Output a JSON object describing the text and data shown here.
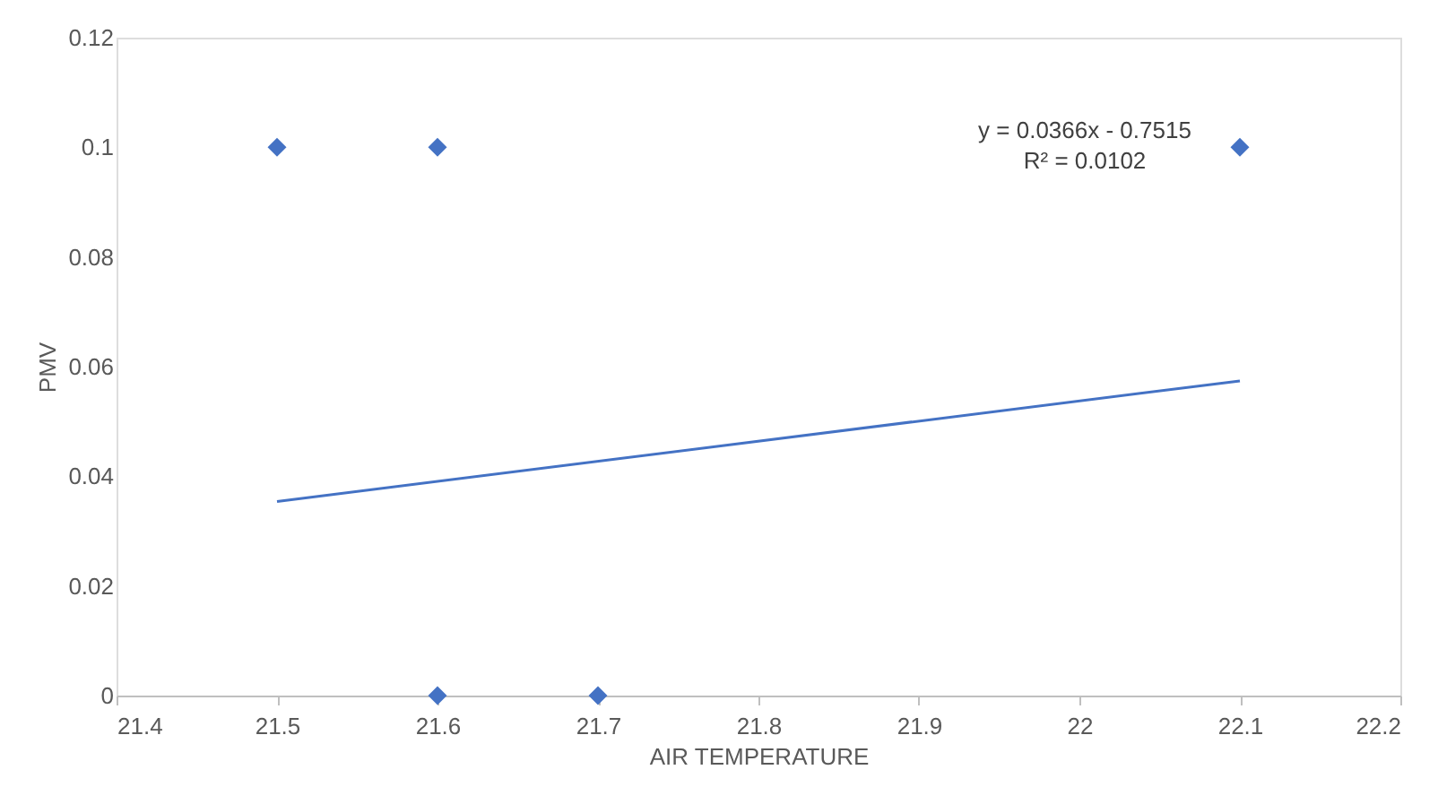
{
  "chart_data": {
    "type": "scatter",
    "xlabel": "AIR TEMPERATURE",
    "ylabel": "PMV",
    "xlim": [
      21.4,
      22.2
    ],
    "xticks": [
      21.4,
      21.5,
      21.6,
      21.7,
      21.8,
      21.9,
      22,
      22.1,
      22.2
    ],
    "ylim": [
      0,
      0.12
    ],
    "yticks": [
      0,
      0.02,
      0.04,
      0.06,
      0.08,
      0.1,
      0.12
    ],
    "grid": false,
    "series": [
      {
        "color": "#4472c4",
        "marker": "diamond",
        "x": [
          21.5,
          21.6,
          21.6,
          21.7,
          22.1
        ],
        "values": [
          0.1,
          0.1,
          0,
          0,
          0.1
        ]
      },
      {
        "type": "line",
        "color": "#4472c4",
        "line_style": "solid",
        "x": [
          21.5,
          22.1
        ],
        "values": [
          0.0354,
          0.0574
        ]
      }
    ],
    "annotations": [
      "y = 0.0366x - 0.7515",
      "R² = 0.0102"
    ]
  }
}
